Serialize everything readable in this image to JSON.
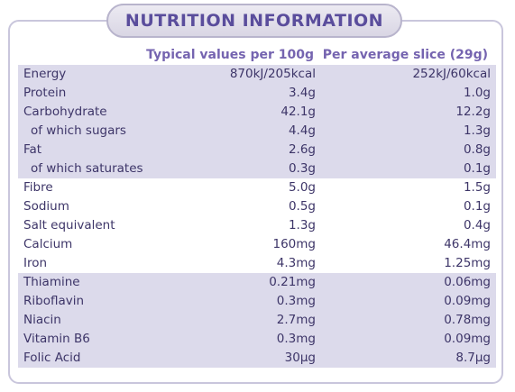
{
  "title": "NUTRITION INFORMATION",
  "headers": {
    "per_100g": "Typical values per 100g",
    "per_slice": "Per average slice (29g)"
  },
  "rows": [
    {
      "name": "Energy",
      "per_100g": "870kJ/205kcal",
      "per_slice": "252kJ/60kcal",
      "group": "shaded"
    },
    {
      "name": "Protein",
      "per_100g": "3.4g",
      "per_slice": "1.0g",
      "group": "shaded"
    },
    {
      "name": "Carbohydrate",
      "per_100g": "42.1g",
      "per_slice": "12.2g",
      "group": "shaded"
    },
    {
      "name": "of which sugars",
      "per_100g": "4.4g",
      "per_slice": "1.3g",
      "group": "shaded"
    },
    {
      "name": "Fat",
      "per_100g": "2.6g",
      "per_slice": "0.8g",
      "group": "shaded"
    },
    {
      "name": "of which saturates",
      "per_100g": "0.3g",
      "per_slice": "0.1g",
      "group": "shaded"
    },
    {
      "name": "Fibre",
      "per_100g": "5.0g",
      "per_slice": "1.5g",
      "group": "white"
    },
    {
      "name": "Sodium",
      "per_100g": "0.5g",
      "per_slice": "0.1g",
      "group": "white"
    },
    {
      "name": "Salt equivalent",
      "per_100g": "1.3g",
      "per_slice": "0.4g",
      "group": "white"
    },
    {
      "name": "Calcium",
      "per_100g": "160mg",
      "per_slice": "46.4mg",
      "group": "white"
    },
    {
      "name": "Iron",
      "per_100g": "4.3mg",
      "per_slice": "1.25mg",
      "group": "white"
    },
    {
      "name": "Thiamine",
      "per_100g": "0.21mg",
      "per_slice": "0.06mg",
      "group": "shaded"
    },
    {
      "name": "Riboflavin",
      "per_100g": "0.3mg",
      "per_slice": "0.09mg",
      "group": "shaded"
    },
    {
      "name": "Niacin",
      "per_100g": "2.7mg",
      "per_slice": "0.78mg",
      "group": "shaded"
    },
    {
      "name": "Vitamin B6",
      "per_100g": "0.3mg",
      "per_slice": "0.09mg",
      "group": "shaded"
    },
    {
      "name": "Folic Acid",
      "per_100g": "30µg",
      "per_slice": "8.7µg",
      "group": "shaded"
    }
  ],
  "colors": {
    "text": "#3d3568",
    "header_text": "#7564b0",
    "title_text": "#5a4d9c",
    "shaded_row": "#dcdaeb",
    "border": "#c9c6dc"
  }
}
